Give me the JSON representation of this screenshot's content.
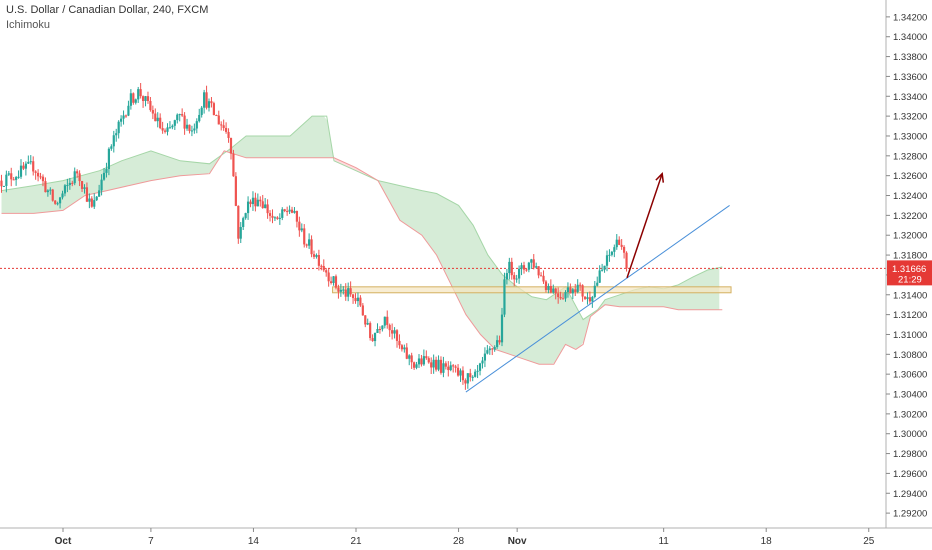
{
  "header": {
    "title": "U.S. Dollar / Canadian Dollar, 240, FXCM",
    "indicator": "Ichimoku"
  },
  "colors": {
    "up": "#26a69a",
    "down": "#ef5350",
    "cloud_bull": "#c8e6c9",
    "cloud_bear": "#ffcdd2",
    "trendline": "#4a90d9",
    "arrow": "#8b0000",
    "zone": "#f5e6c0"
  },
  "chart_data": {
    "type": "candlestick",
    "symbol": "USDCAD",
    "timeframe": "240",
    "x_ticks": [
      {
        "label": "Oct",
        "day": 0,
        "bold": true
      },
      {
        "label": "7",
        "day": 6
      },
      {
        "label": "14",
        "day": 13
      },
      {
        "label": "21",
        "day": 20
      },
      {
        "label": "28",
        "day": 27
      },
      {
        "label": "Nov",
        "day": 31,
        "bold": true
      },
      {
        "label": "11",
        "day": 41
      },
      {
        "label": "18",
        "day": 48
      },
      {
        "label": "25",
        "day": 55
      }
    ],
    "y_ticks": [
      "1.34200",
      "1.34000",
      "1.33800",
      "1.33600",
      "1.33400",
      "1.33200",
      "1.33000",
      "1.32800",
      "1.32600",
      "1.32400",
      "1.32200",
      "1.32000",
      "1.31800",
      "1.31600",
      "1.31400",
      "1.31200",
      "1.31000",
      "1.30800",
      "1.30600",
      "1.30400",
      "1.30200",
      "1.30000",
      "1.29800",
      "1.29600",
      "1.29400",
      "1.29200"
    ],
    "ylim": [
      1.2905,
      1.3437
    ],
    "current_price": {
      "value": 1.31666,
      "label": "1.31666",
      "countdown": "21:29"
    },
    "support_zone": [
      1.3142,
      1.3148
    ],
    "trendline": {
      "from": [
        27.5,
        1.3042
      ],
      "to": [
        45.5,
        1.323
      ]
    },
    "projection_arrow": {
      "from": [
        38.5,
        1.3157
      ],
      "to": [
        40.9,
        1.3262
      ]
    },
    "anchors": [
      [
        -4.2,
        1.3255
      ],
      [
        -2,
        1.327
      ],
      [
        -0.5,
        1.323
      ],
      [
        1,
        1.3265
      ],
      [
        2,
        1.3225
      ],
      [
        3.3,
        1.329
      ],
      [
        4.5,
        1.3335
      ],
      [
        5.2,
        1.3345
      ],
      [
        6,
        1.3325
      ],
      [
        7,
        1.33
      ],
      [
        8,
        1.332
      ],
      [
        8.8,
        1.3305
      ],
      [
        9.6,
        1.334
      ],
      [
        10.4,
        1.332
      ],
      [
        11.4,
        1.33
      ],
      [
        12,
        1.3195
      ],
      [
        12.5,
        1.323
      ],
      [
        13.4,
        1.3238
      ],
      [
        14.5,
        1.3212
      ],
      [
        15.5,
        1.3228
      ],
      [
        16.5,
        1.3195
      ],
      [
        17.5,
        1.3175
      ],
      [
        18.8,
        1.3145
      ],
      [
        19.5,
        1.314
      ],
      [
        20.3,
        1.313
      ],
      [
        21,
        1.3095
      ],
      [
        22,
        1.312
      ],
      [
        23,
        1.3085
      ],
      [
        24,
        1.307
      ],
      [
        25,
        1.3075
      ],
      [
        26,
        1.3065
      ],
      [
        27,
        1.306
      ],
      [
        28,
        1.3052
      ],
      [
        29,
        1.308
      ],
      [
        29.9,
        1.3098
      ],
      [
        30.2,
        1.317
      ],
      [
        31,
        1.316
      ],
      [
        32,
        1.3175
      ],
      [
        33,
        1.315
      ],
      [
        34,
        1.314
      ],
      [
        35,
        1.315
      ],
      [
        35.8,
        1.3135
      ],
      [
        36,
        1.314
      ],
      [
        37,
        1.317
      ],
      [
        37.5,
        1.3185
      ],
      [
        38,
        1.3198
      ],
      [
        38.5,
        1.3165
      ]
    ],
    "cloud_a": [
      [
        -4.2,
        1.3245
      ],
      [
        -2,
        1.325
      ],
      [
        0,
        1.3255
      ],
      [
        2.5,
        1.3265
      ],
      [
        4,
        1.3275
      ],
      [
        6,
        1.3285
      ],
      [
        8,
        1.3275
      ],
      [
        10,
        1.3272
      ],
      [
        11.5,
        1.3288
      ],
      [
        12.5,
        1.33
      ],
      [
        14.3,
        1.33
      ],
      [
        15.5,
        1.33
      ],
      [
        17,
        1.332
      ],
      [
        18,
        1.332
      ],
      [
        18.5,
        1.3275
      ],
      [
        20,
        1.3265
      ],
      [
        21.5,
        1.3255
      ],
      [
        23,
        1.325
      ],
      [
        24.5,
        1.3245
      ],
      [
        25.5,
        1.3242
      ],
      [
        27,
        1.323
      ],
      [
        28,
        1.321
      ],
      [
        29,
        1.318
      ],
      [
        30,
        1.316
      ],
      [
        31,
        1.3148
      ],
      [
        32,
        1.3138
      ],
      [
        33,
        1.3135
      ],
      [
        34.3,
        1.3148
      ],
      [
        35.5,
        1.3115
      ],
      [
        36.5,
        1.3125
      ],
      [
        37,
        1.3135
      ],
      [
        38,
        1.314
      ],
      [
        39,
        1.3145
      ],
      [
        40,
        1.3148
      ],
      [
        41,
        1.3146
      ],
      [
        42,
        1.315
      ],
      [
        43,
        1.3158
      ],
      [
        44,
        1.3165
      ],
      [
        45,
        1.3168
      ]
    ],
    "cloud_b": [
      [
        -4.2,
        1.3222
      ],
      [
        -2,
        1.3222
      ],
      [
        0,
        1.3225
      ],
      [
        1.5,
        1.324
      ],
      [
        3,
        1.3245
      ],
      [
        4.5,
        1.325
      ],
      [
        6,
        1.3255
      ],
      [
        8,
        1.326
      ],
      [
        10,
        1.3262
      ],
      [
        11,
        1.3285
      ],
      [
        12.5,
        1.3278
      ],
      [
        14.3,
        1.3278
      ],
      [
        15.5,
        1.3278
      ],
      [
        17,
        1.3278
      ],
      [
        18.5,
        1.3278
      ],
      [
        20,
        1.3268
      ],
      [
        21.5,
        1.3255
      ],
      [
        23,
        1.3215
      ],
      [
        24.5,
        1.32
      ],
      [
        25.5,
        1.318
      ],
      [
        26.5,
        1.315
      ],
      [
        27.5,
        1.312
      ],
      [
        28.5,
        1.31
      ],
      [
        29.5,
        1.3085
      ],
      [
        30.5,
        1.308
      ],
      [
        31.5,
        1.3075
      ],
      [
        32.5,
        1.307
      ],
      [
        33.5,
        1.307
      ],
      [
        34.3,
        1.309
      ],
      [
        35,
        1.3085
      ],
      [
        35.5,
        1.309
      ],
      [
        36,
        1.3118
      ],
      [
        37,
        1.313
      ],
      [
        38,
        1.3128
      ],
      [
        39,
        1.3128
      ],
      [
        40,
        1.3128
      ],
      [
        41,
        1.3128
      ],
      [
        42,
        1.3125
      ],
      [
        43,
        1.3125
      ],
      [
        44,
        1.3125
      ],
      [
        45,
        1.3125
      ]
    ]
  }
}
